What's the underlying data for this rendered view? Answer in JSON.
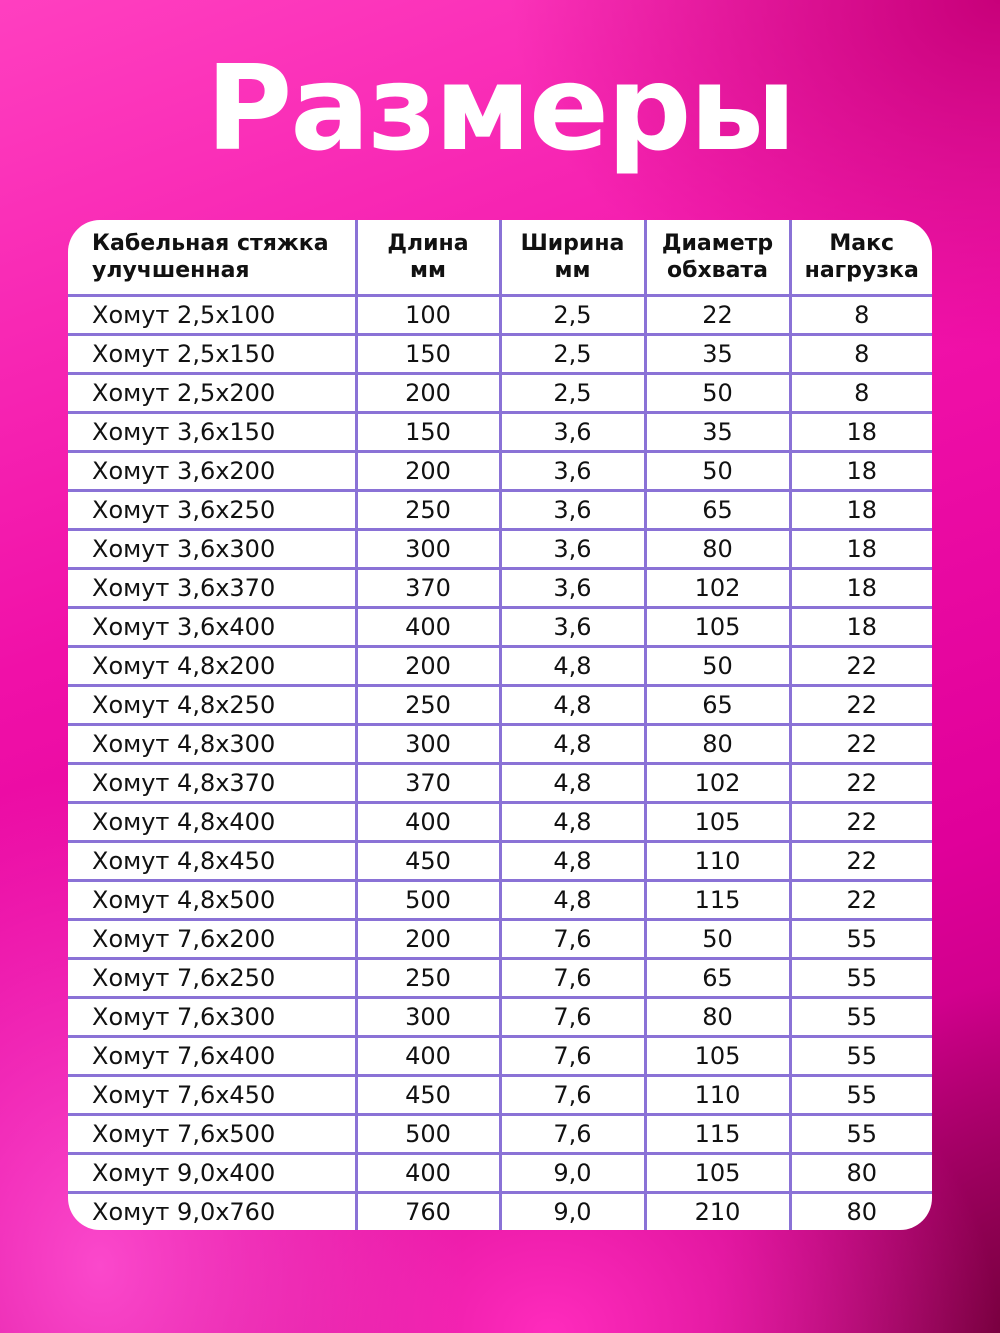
{
  "title": "Размеры",
  "table": {
    "headers": [
      "Кабельная стяжка улучшенная",
      "Длина мм",
      "Ширина мм",
      "Диаметр обхвата",
      "Макс нагрузка"
    ],
    "header_lines": [
      [
        "Кабельная стяжка",
        "улучшенная"
      ],
      [
        "Длина",
        "мм"
      ],
      [
        "Ширина",
        "мм"
      ],
      [
        "Диаметр",
        "обхвата"
      ],
      [
        "Макс",
        "нагрузка"
      ]
    ],
    "rows": [
      [
        "Хомут 2,5х100",
        "100",
        "2,5",
        "22",
        "8"
      ],
      [
        "Хомут 2,5х150",
        "150",
        "2,5",
        "35",
        "8"
      ],
      [
        "Хомут 2,5х200",
        "200",
        "2,5",
        "50",
        "8"
      ],
      [
        "Хомут 3,6х150",
        "150",
        "3,6",
        "35",
        "18"
      ],
      [
        "Хомут 3,6х200",
        "200",
        "3,6",
        "50",
        "18"
      ],
      [
        "Хомут 3,6х250",
        "250",
        "3,6",
        "65",
        "18"
      ],
      [
        "Хомут 3,6х300",
        "300",
        "3,6",
        "80",
        "18"
      ],
      [
        "Хомут 3,6х370",
        "370",
        "3,6",
        "102",
        "18"
      ],
      [
        "Хомут 3,6х400",
        "400",
        "3,6",
        "105",
        "18"
      ],
      [
        "Хомут 4,8х200",
        "200",
        "4,8",
        "50",
        "22"
      ],
      [
        "Хомут 4,8х250",
        "250",
        "4,8",
        "65",
        "22"
      ],
      [
        "Хомут 4,8х300",
        "300",
        "4,8",
        "80",
        "22"
      ],
      [
        "Хомут 4,8х370",
        "370",
        "4,8",
        "102",
        "22"
      ],
      [
        "Хомут 4,8х400",
        "400",
        "4,8",
        "105",
        "22"
      ],
      [
        "Хомут 4,8х450",
        "450",
        "4,8",
        "110",
        "22"
      ],
      [
        "Хомут 4,8х500",
        "500",
        "4,8",
        "115",
        "22"
      ],
      [
        "Хомут 7,6х200",
        "200",
        "7,6",
        "50",
        "55"
      ],
      [
        "Хомут 7,6х250",
        "250",
        "7,6",
        "65",
        "55"
      ],
      [
        "Хомут 7,6х300",
        "300",
        "7,6",
        "80",
        "55"
      ],
      [
        "Хомут 7,6х400",
        "400",
        "7,6",
        "105",
        "55"
      ],
      [
        "Хомут 7,6х450",
        "450",
        "7,6",
        "110",
        "55"
      ],
      [
        "Хомут 7,6х500",
        "500",
        "7,6",
        "115",
        "55"
      ],
      [
        "Хомут 9,0х400",
        "400",
        "9,0",
        "105",
        "80"
      ],
      [
        "Хомут 9,0х760",
        "760",
        "9,0",
        "210",
        "80"
      ]
    ]
  },
  "colors": {
    "background": "#f010a8",
    "grid": "#8a72d6",
    "title": "#ffffff"
  }
}
